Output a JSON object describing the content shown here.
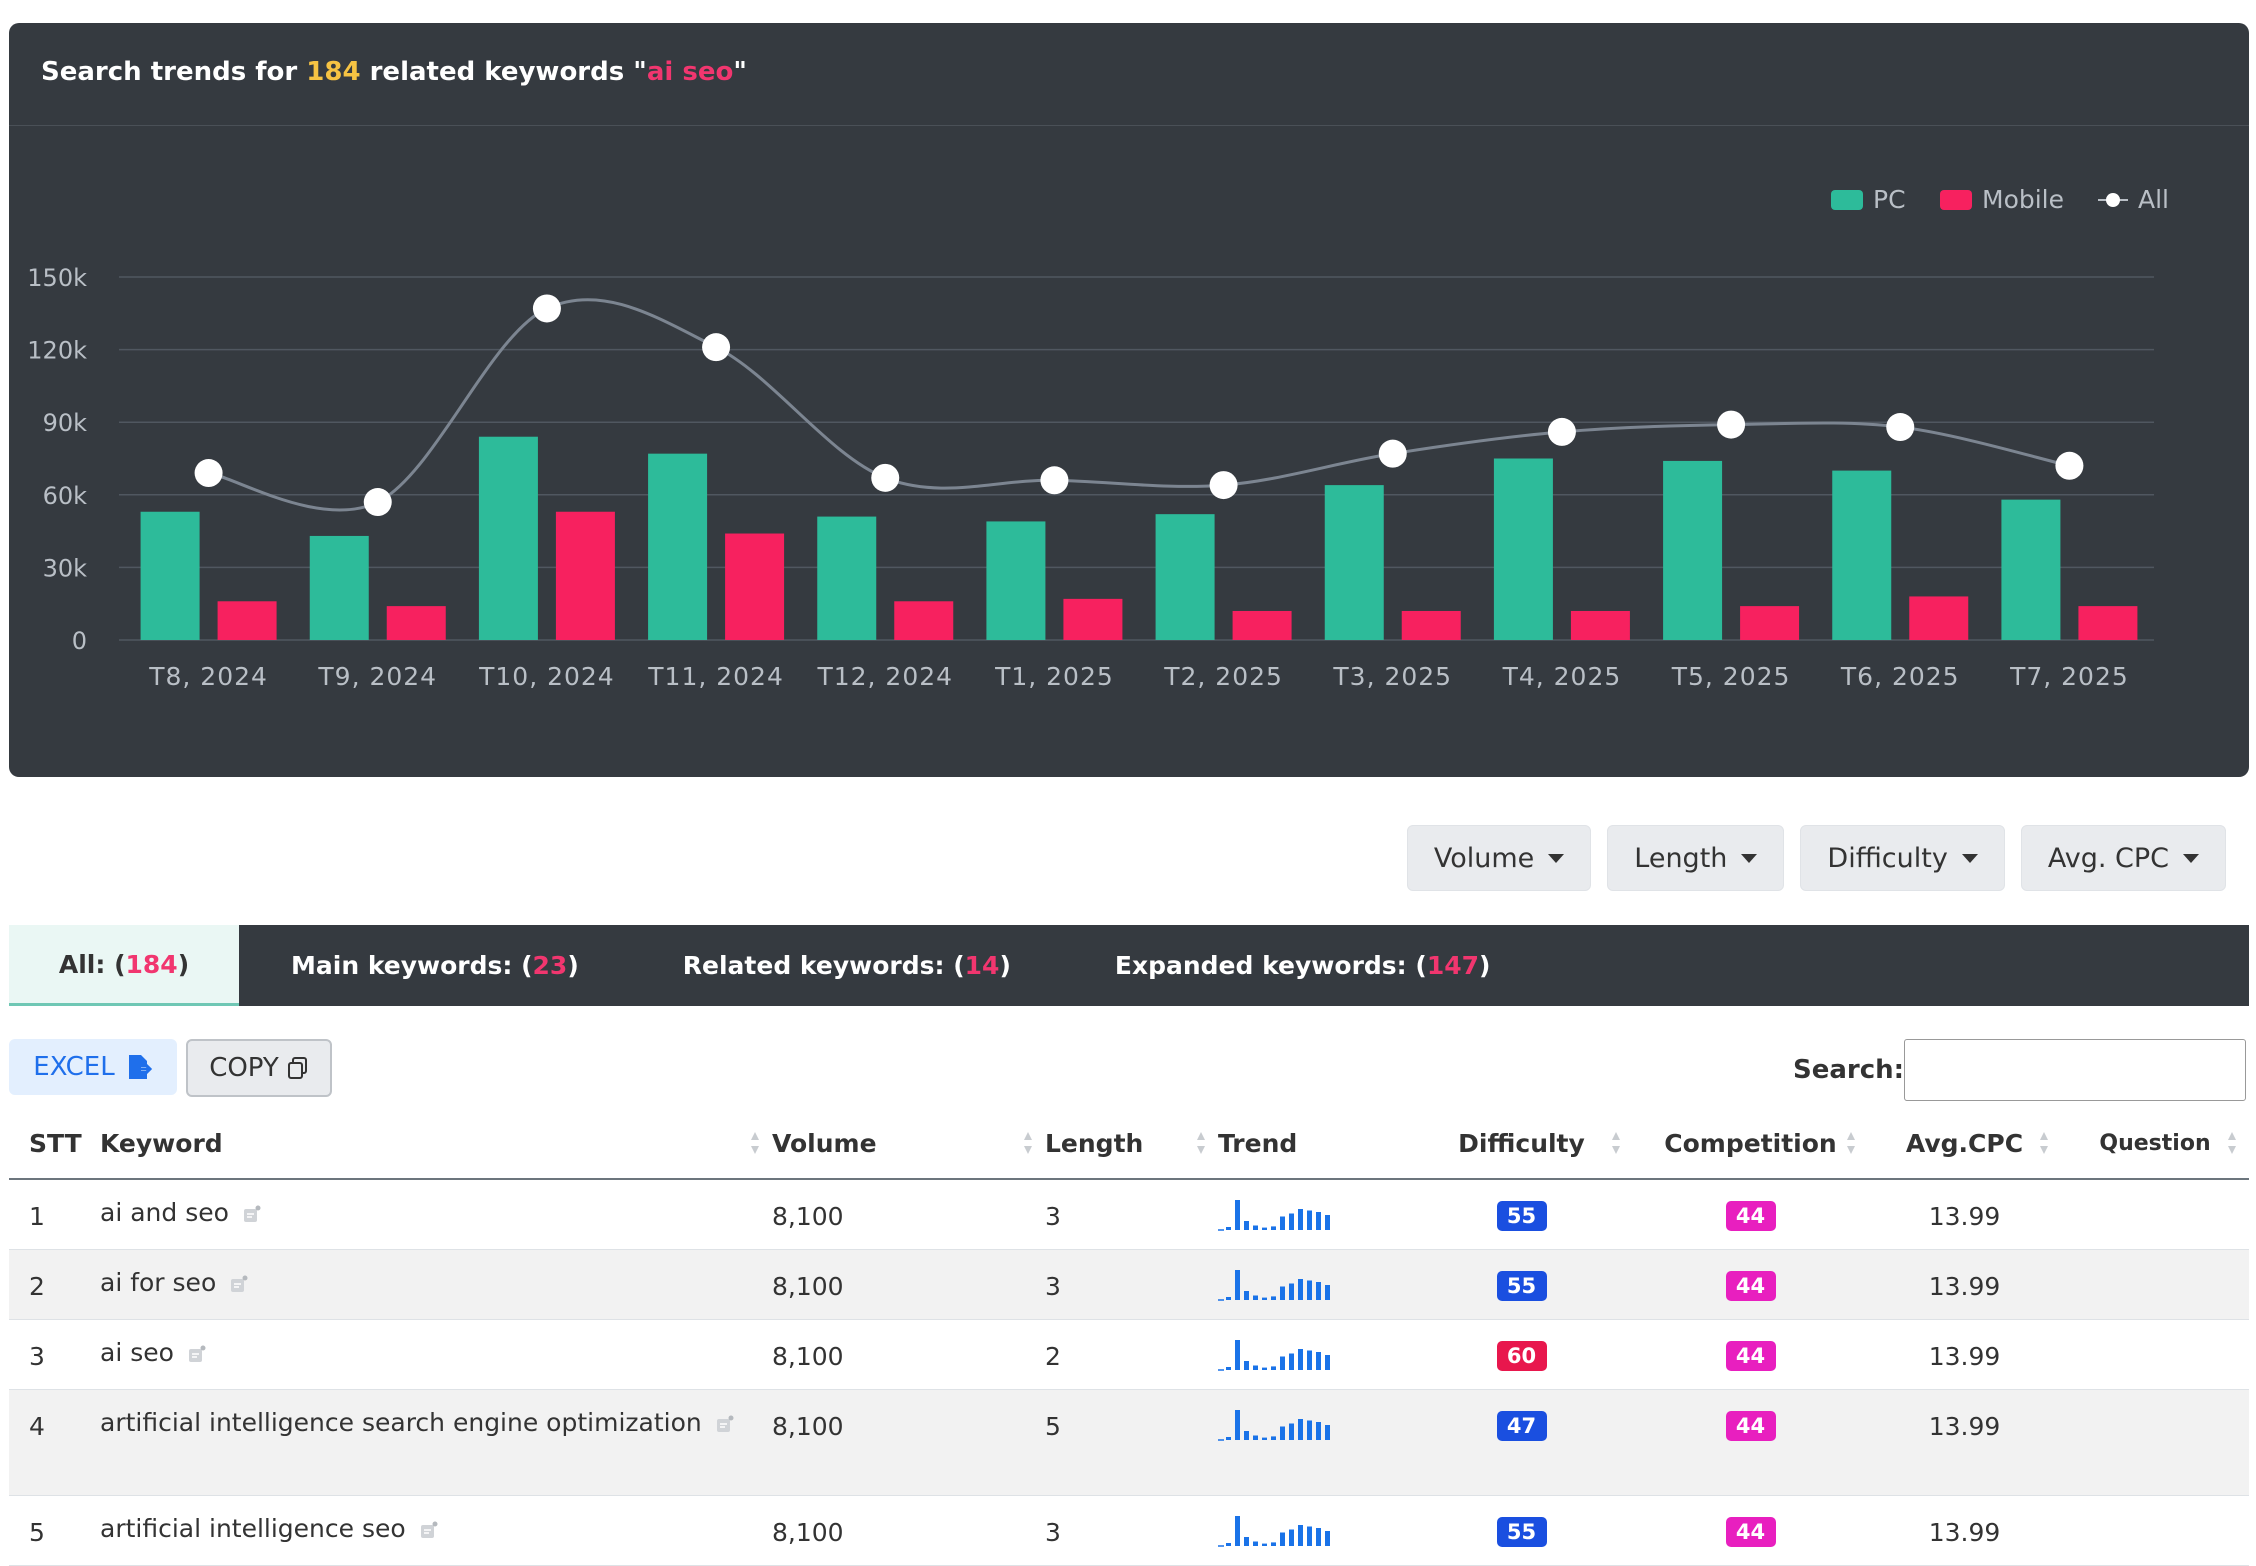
{
  "chart_panel": {
    "title_prefix": "Search trends for ",
    "count": "184",
    "title_middle": " related keywords \"",
    "keyword": "ai seo",
    "title_suffix": "\""
  },
  "colors": {
    "pc": "#2dbb9a",
    "mobile": "#f7215f",
    "all": "#ffffff",
    "panel": "#353a40"
  },
  "chart_data": {
    "type": "bar",
    "categories": [
      "T8, 2024",
      "T9, 2024",
      "T10, 2024",
      "T11, 2024",
      "T12, 2024",
      "T1, 2025",
      "T2, 2025",
      "T3, 2025",
      "T4, 2025",
      "T5, 2025",
      "T6, 2025",
      "T7, 2025"
    ],
    "series": [
      {
        "name": "PC",
        "type": "bar",
        "values": [
          53000,
          43000,
          84000,
          77000,
          51000,
          49000,
          52000,
          64000,
          75000,
          74000,
          70000,
          58000
        ]
      },
      {
        "name": "Mobile",
        "type": "bar",
        "values": [
          16000,
          14000,
          53000,
          44000,
          16000,
          17000,
          12000,
          12000,
          12000,
          14000,
          18000,
          14000
        ]
      },
      {
        "name": "All",
        "type": "line",
        "values": [
          69000,
          57000,
          137000,
          121000,
          67000,
          66000,
          64000,
          77000,
          86000,
          89000,
          88000,
          72000
        ]
      }
    ],
    "yticks": [
      "0",
      "30k",
      "60k",
      "90k",
      "120k",
      "150k"
    ],
    "ylim": [
      0,
      150000
    ],
    "grid": true,
    "legend": "top-right"
  },
  "filters": [
    {
      "label": "Volume"
    },
    {
      "label": "Length"
    },
    {
      "label": "Difficulty"
    },
    {
      "label": "Avg. CPC"
    }
  ],
  "tabs": [
    {
      "label": "All: (",
      "count": "184",
      "close": ")"
    },
    {
      "label": "Main keywords: (",
      "count": "23",
      "close": ")"
    },
    {
      "label": "Related keywords: (",
      "count": "14",
      "close": ")"
    },
    {
      "label": "Expanded keywords: (",
      "count": "147",
      "close": ")"
    }
  ],
  "toolbar": {
    "excel": "EXCEL",
    "copy": "COPY",
    "search_label": "Search:",
    "search_value": ""
  },
  "table": {
    "headers": [
      "STT",
      "Keyword",
      "Volume",
      "Length",
      "Trend",
      "Difficulty",
      "Competition",
      "Avg.CPC",
      "Question"
    ],
    "rows": [
      {
        "stt": "1",
        "keyword": "ai and seo",
        "volume": "8,100",
        "length": "3",
        "difficulty": "55",
        "difficulty_color": "#1a4fe0",
        "competition": "44",
        "cpc": "13.99",
        "question": ""
      },
      {
        "stt": "2",
        "keyword": "ai for seo",
        "volume": "8,100",
        "length": "3",
        "difficulty": "55",
        "difficulty_color": "#1a4fe0",
        "competition": "44",
        "cpc": "13.99",
        "question": ""
      },
      {
        "stt": "3",
        "keyword": "ai seo",
        "volume": "8,100",
        "length": "2",
        "difficulty": "60",
        "difficulty_color": "#e8174d",
        "competition": "44",
        "cpc": "13.99",
        "question": ""
      },
      {
        "stt": "4",
        "keyword": "artificial intelligence search engine optimization",
        "volume": "8,100",
        "length": "5",
        "difficulty": "47",
        "difficulty_color": "#1a4fe0",
        "competition": "44",
        "cpc": "13.99",
        "question": ""
      },
      {
        "stt": "5",
        "keyword": "artificial intelligence seo",
        "volume": "8,100",
        "length": "3",
        "difficulty": "55",
        "difficulty_color": "#1a4fe0",
        "competition": "44",
        "cpc": "13.99",
        "question": ""
      }
    ],
    "competition_color": "#e81fbf",
    "sparkline": [
      0.1,
      1.0,
      0.3,
      0.15,
      0.08,
      0.12,
      0.45,
      0.55,
      0.7,
      0.65,
      0.6,
      0.5
    ]
  }
}
